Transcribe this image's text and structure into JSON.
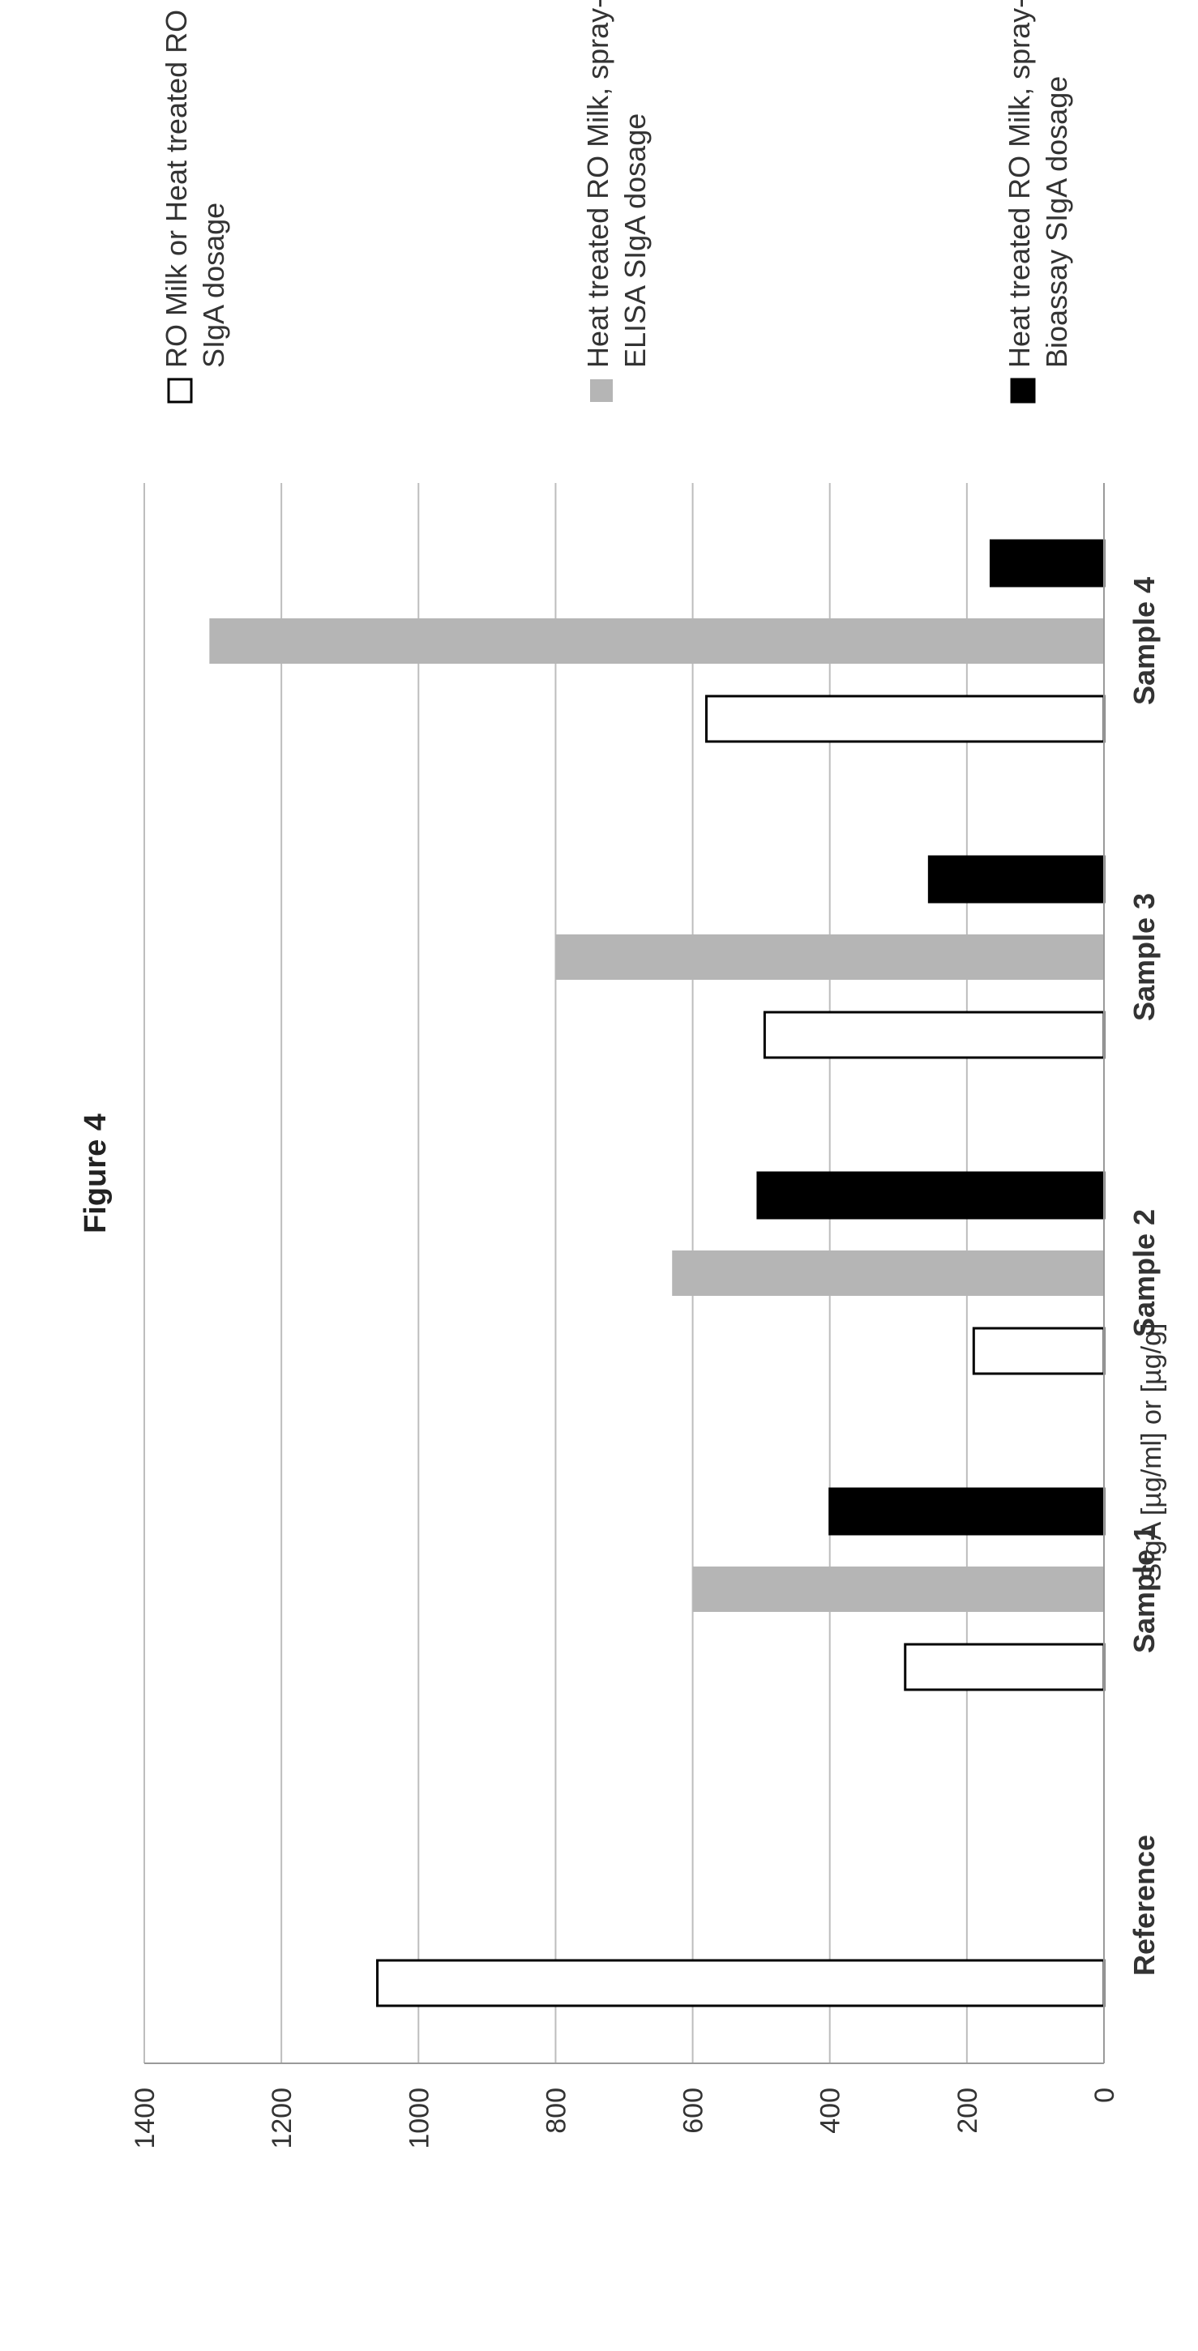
{
  "chart_data": {
    "type": "bar",
    "orientation": "rotated",
    "title": "Figure 4",
    "ylabel": "SIgA [µg/ml] or [µg/g]",
    "xlabel": "",
    "categories": [
      "Reference",
      "Sample 1",
      "Sample 2",
      "Sample 3",
      "Sample 4"
    ],
    "ylim": [
      0,
      1400
    ],
    "yticks": [
      0,
      200,
      400,
      600,
      800,
      1000,
      1200,
      1400
    ],
    "grid": true,
    "legend_position": "right",
    "series": [
      {
        "name": "RO Milk or Heat treated RO Milk, liquid, ELISA SIgA dosage",
        "legend_lines": [
          "RO Milk or Heat treated RO Milk, liquid, ELISA",
          "SIgA dosage"
        ],
        "fill": "#ffffff",
        "values": [
          1060,
          290,
          190,
          495,
          580
        ]
      },
      {
        "name": "Heat treated RO Milk, spray-dried powder, ELISA SIgA dosage",
        "legend_lines": [
          "Heat treated RO Milk, spray-dried powder,",
          "ELISA SIgA dosage"
        ],
        "fill": "#b5b5b5",
        "values": [
          null,
          600,
          630,
          800,
          1305
        ]
      },
      {
        "name": "Heat treated RO Milk, spray-dried powder, Bioassay SIgA dosage",
        "legend_lines": [
          "Heat treated RO Milk, spray-dried powder,",
          "Bioassay SIgA dosage"
        ],
        "fill": "#000000",
        "values": [
          null,
          400,
          505,
          255,
          165
        ]
      }
    ]
  }
}
